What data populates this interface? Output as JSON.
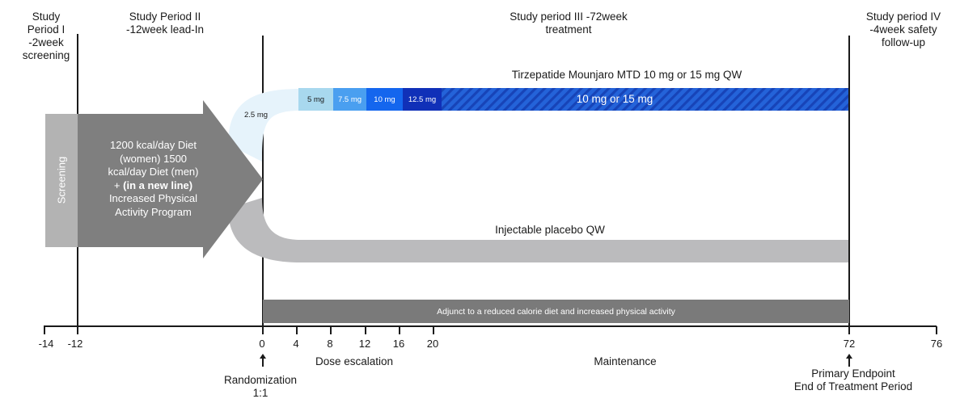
{
  "headers": {
    "p1": "Study Period I -2week screening",
    "p2": "Study Period II -12week lead-In",
    "p3": "Study period III -72week treatment",
    "p4": "Study period IV -4week safety follow-up"
  },
  "screening_label": "Screening",
  "diet_text": {
    "line1": "1200 kcal/day Diet",
    "line2": "(women) 1500",
    "line3": "kcal/day Diet (men)",
    "line4_prefix": "+ ",
    "line4_bold": "(in a new line)",
    "line5": "Increased Physical",
    "line6": "Activity Program"
  },
  "active_arm": {
    "title": "Tirzepatide Mounjaro MTD 10 mg or 15 mg QW",
    "dose_start": "2.5 mg",
    "doses": [
      "5 mg",
      "7.5 mg",
      "10 mg",
      "12.5 mg"
    ],
    "maintenance_dose": "10 mg or 15 mg"
  },
  "placebo_arm": {
    "title": "Injectable placebo QW"
  },
  "adjunct_bar": "Adjunct to a reduced calorie diet and increased physical activity",
  "axis": {
    "ticks": [
      "-14",
      "-12",
      "0",
      "4",
      "8",
      "12",
      "16",
      "20",
      "72",
      "76"
    ]
  },
  "phase_labels": {
    "dose_escalation": "Dose escalation",
    "maintenance": "Maintenance"
  },
  "annotations": {
    "randomization": "Randomization",
    "ratio": "1:1",
    "primary_endpoint": "Primary Endpoint",
    "end_of_treatment": "End of Treatment Period"
  },
  "colors": {
    "dose_2_5": "#e6f3fb",
    "dose_5": "#a8d8ee",
    "dose_7_5": "#4a9ff0",
    "dose_10": "#1466ee",
    "dose_12_5": "#1030b8",
    "maintenance": "#1a5fd8",
    "placebo": "#bbbbbd",
    "leadin": "#7f7f7f",
    "screening": "#b3b3b3",
    "adjunct": "#7a7a7a"
  }
}
